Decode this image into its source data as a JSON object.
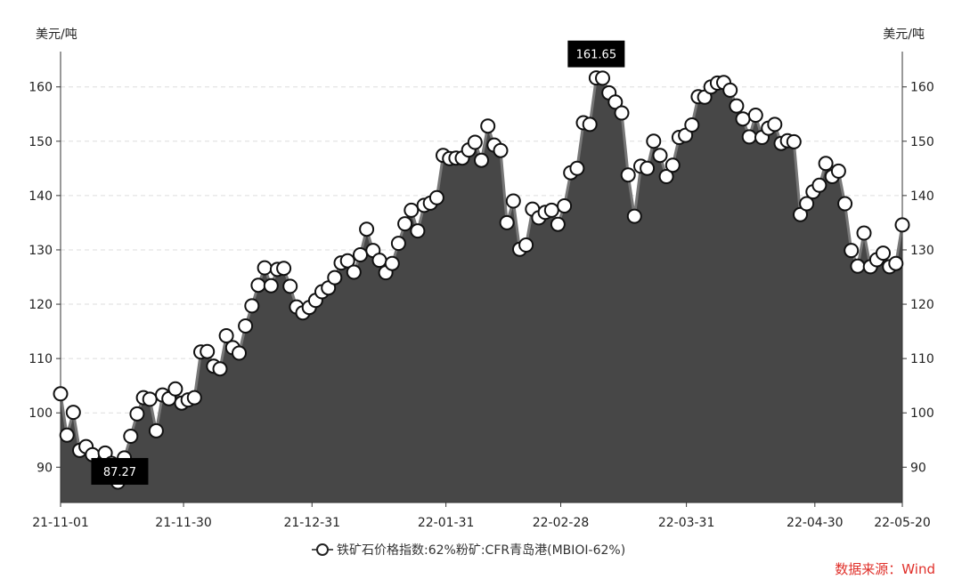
{
  "unit_left": "美元/吨",
  "unit_right": "美元/吨",
  "source": "数据来源：Wind",
  "legend_label": "铁矿石价格指数:62%粉矿:CFR青岛港(MBIOI-62%)",
  "chart_data": {
    "type": "area",
    "series": [
      {
        "name": "铁矿石价格指数:62%粉矿:CFR青岛港(MBIOI-62%)",
        "values": [
          103.5,
          95.9,
          100.1,
          93.1,
          93.8,
          92.3,
          89.0,
          92.6,
          90.7,
          87.27,
          91.7,
          95.7,
          99.8,
          102.8,
          102.5,
          96.7,
          103.3,
          102.6,
          104.4,
          101.8,
          102.4,
          102.8,
          111.2,
          111.3,
          108.6,
          108.1,
          114.2,
          112.0,
          111.0,
          116.0,
          119.7,
          123.5,
          126.7,
          123.4,
          126.4,
          126.6,
          123.3,
          119.5,
          118.4,
          119.4,
          120.7,
          122.3,
          123.0,
          124.9,
          127.6,
          128.0,
          125.9,
          129.1,
          133.8,
          129.9,
          128.1,
          125.8,
          127.5,
          131.2,
          134.8,
          137.3,
          133.5,
          138.2,
          138.6,
          139.6,
          147.4,
          146.8,
          146.9,
          146.9,
          148.4,
          149.8,
          146.5,
          152.8,
          149.3,
          148.3,
          135.0,
          139.0,
          130.1,
          130.9,
          137.5,
          135.9,
          136.9,
          137.3,
          134.7,
          138.1,
          144.2,
          145.0,
          153.4,
          153.1,
          161.65,
          161.6,
          158.9,
          157.2,
          155.2,
          143.8,
          136.2,
          145.4,
          145.0,
          150.0,
          147.4,
          143.5,
          145.6,
          150.7,
          151.1,
          153.0,
          158.2,
          158.1,
          160.0,
          160.7,
          160.8,
          159.4,
          156.5,
          154.1,
          150.8,
          154.8,
          150.7,
          152.4,
          153.1,
          149.6,
          150.1,
          149.9,
          136.5,
          138.5,
          140.7,
          141.9,
          145.9,
          143.5,
          144.5,
          138.5,
          129.9,
          127.0,
          133.1,
          126.9,
          128.2,
          129.4,
          126.9,
          127.5,
          134.6
        ]
      }
    ],
    "x_ticks": [
      "21-11-01",
      "21-11-30",
      "21-12-31",
      "22-01-31",
      "22-02-28",
      "22-03-31",
      "22-04-30",
      "22-05-20"
    ],
    "y_ticks": [
      90,
      100,
      110,
      120,
      130,
      140,
      150,
      160
    ],
    "ylim": [
      83.5,
      166.5
    ],
    "annotations": [
      {
        "label": "87.27",
        "value": 87.27
      },
      {
        "label": "161.65",
        "value": 161.65
      }
    ],
    "grid": true,
    "colors": {
      "fill": "#474747",
      "line": "#555555",
      "marker_edge": "#111111",
      "marker_fill": "#ffffff",
      "label_bg": "#000000",
      "source_text": "#e0302a"
    }
  }
}
